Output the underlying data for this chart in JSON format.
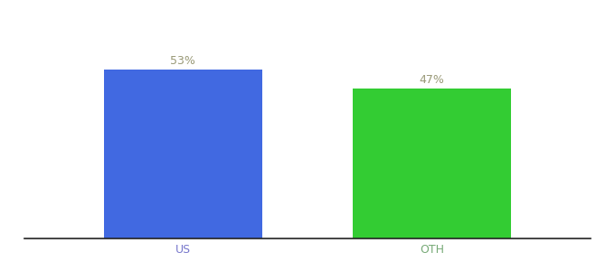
{
  "categories": [
    "US",
    "OTH"
  ],
  "values": [
    53,
    47
  ],
  "bar_colors": [
    "#4169e1",
    "#33cc33"
  ],
  "annotation_color": "#999977",
  "tick_colors": [
    "#7777cc",
    "#77aa77"
  ],
  "annotations": [
    "53%",
    "47%"
  ],
  "ylim": [
    0,
    68
  ],
  "bar_width": 0.28,
  "x_positions": [
    0.28,
    0.72
  ],
  "xlim": [
    0.0,
    1.0
  ],
  "background_color": "#ffffff",
  "annotation_fontsize": 9,
  "tick_fontsize": 9
}
